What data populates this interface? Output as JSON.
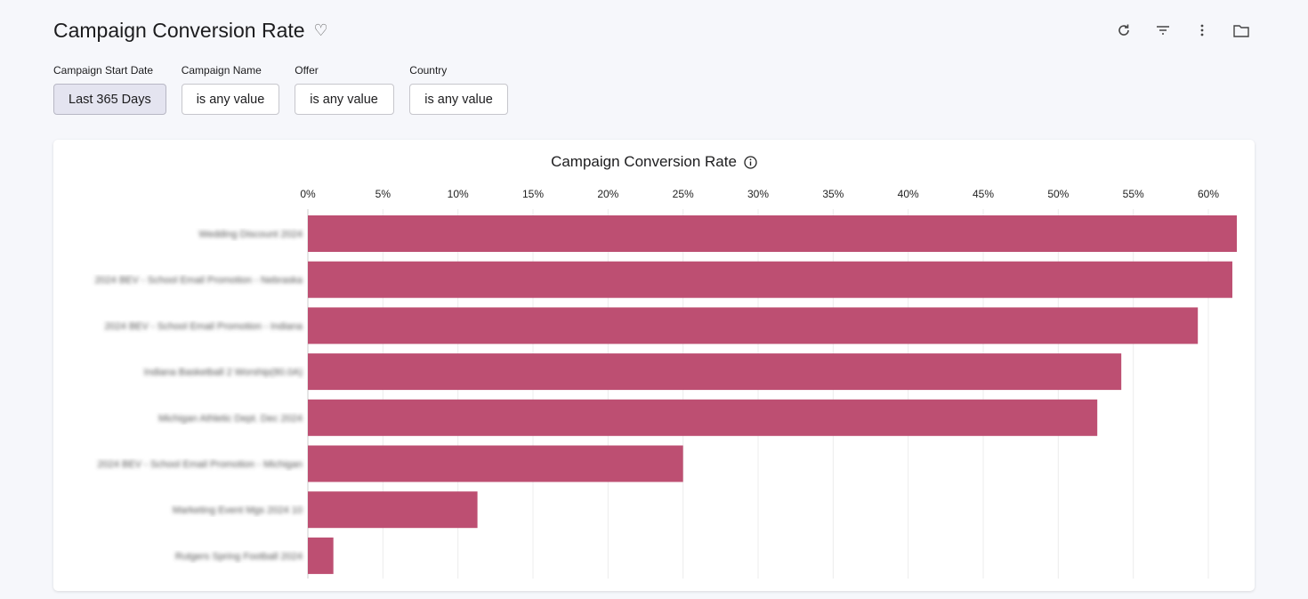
{
  "header": {
    "title": "Campaign Conversion Rate",
    "favorite_icon": "heart-icon",
    "actions": [
      {
        "name": "refresh-icon"
      },
      {
        "name": "filter-icon"
      },
      {
        "name": "more-vertical-icon"
      },
      {
        "name": "folder-icon"
      }
    ]
  },
  "filters": [
    {
      "label": "Campaign Start Date",
      "value": "Last 365 Days"
    },
    {
      "label": "Campaign Name",
      "value": "is any value"
    },
    {
      "label": "Offer",
      "value": "is any value"
    },
    {
      "label": "Country",
      "value": "is any value"
    }
  ],
  "chart_data": {
    "type": "bar",
    "orientation": "horizontal",
    "title": "Campaign Conversion Rate",
    "info_icon": "info-icon",
    "bar_color": "#bd4f72",
    "grid": true,
    "xlim": [
      0,
      62
    ],
    "x_ticks": [
      "0%",
      "5%",
      "10%",
      "15%",
      "20%",
      "25%",
      "30%",
      "35%",
      "40%",
      "45%",
      "50%",
      "55%",
      "60%"
    ],
    "categories": [
      "Wedding Discount 2024",
      "2024 BEV - School Email Promotion - Nebraska",
      "2024 BEV - School Email Promotion - Indiana",
      "Indiana Basketball 2 Worship(80.0A)",
      "Michigan Athletic Dept. Dec 2024",
      "2024 BEV - School Email Promotion - Michigan",
      "Marketing Event Mgs 2024 10",
      "Rutgers Spring Football 2024"
    ],
    "values": [
      61.9,
      61.6,
      59.3,
      54.2,
      52.6,
      25.0,
      11.3,
      1.7
    ]
  }
}
